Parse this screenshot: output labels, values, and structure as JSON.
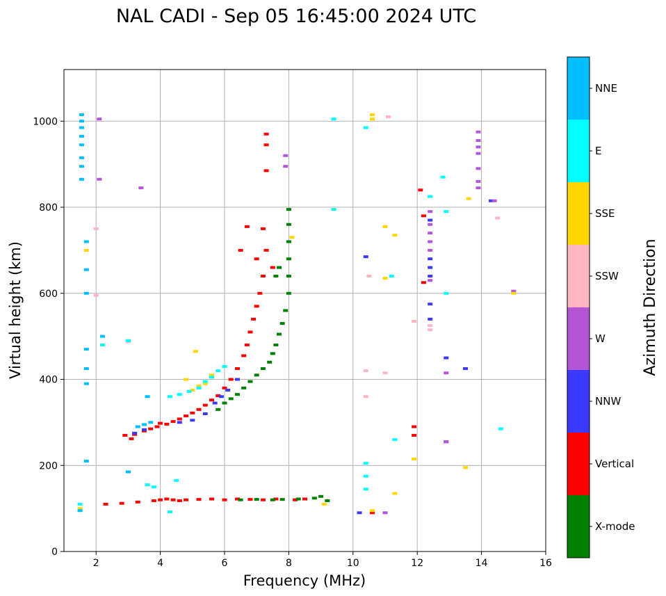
{
  "chart_data": {
    "type": "scatter",
    "title": "NAL CADI - Sep 05 16:45:00 2024 UTC",
    "xlabel": "Frequency (MHz)",
    "ylabel": "Virtual height (km)",
    "xlim": [
      1,
      16
    ],
    "ylim": [
      0,
      1120
    ],
    "xticks": [
      2,
      4,
      6,
      8,
      10,
      12,
      14,
      16
    ],
    "yticks": [
      0,
      200,
      400,
      600,
      800,
      1000
    ],
    "grid": true,
    "colorbar": {
      "label": "Azimuth Direction",
      "categories": [
        {
          "name": "X-mode",
          "color": "#008000"
        },
        {
          "name": "Vertical",
          "color": "#ff0000"
        },
        {
          "name": "NNW",
          "color": "#3a3aff"
        },
        {
          "name": "W",
          "color": "#b455d6"
        },
        {
          "name": "SSW",
          "color": "#ffb6c1"
        },
        {
          "name": "SSE",
          "color": "#ffd700"
        },
        {
          "name": "E",
          "color": "#00ffff"
        },
        {
          "name": "NNE",
          "color": "#00bfff"
        }
      ]
    },
    "series": [
      {
        "name": "Vertical",
        "points": [
          [
            2.9,
            270
          ],
          [
            3.1,
            262
          ],
          [
            3.2,
            272
          ],
          [
            3.5,
            280
          ],
          [
            3.7,
            285
          ],
          [
            3.9,
            290
          ],
          [
            4.0,
            298
          ],
          [
            4.2,
            296
          ],
          [
            4.4,
            302
          ],
          [
            4.6,
            308
          ],
          [
            4.8,
            315
          ],
          [
            5.0,
            322
          ],
          [
            5.2,
            330
          ],
          [
            5.4,
            340
          ],
          [
            5.6,
            352
          ],
          [
            5.8,
            362
          ],
          [
            6.0,
            380
          ],
          [
            6.2,
            400
          ],
          [
            6.4,
            425
          ],
          [
            6.6,
            455
          ],
          [
            6.7,
            480
          ],
          [
            6.8,
            510
          ],
          [
            6.9,
            540
          ],
          [
            7.0,
            570
          ],
          [
            7.1,
            600
          ],
          [
            7.2,
            640
          ],
          [
            7.3,
            700
          ],
          [
            7.2,
            750
          ],
          [
            6.7,
            755
          ],
          [
            6.5,
            700
          ],
          [
            7.0,
            680
          ],
          [
            7.5,
            660
          ],
          [
            4.0,
            120
          ],
          [
            4.2,
            122
          ],
          [
            4.4,
            120
          ],
          [
            4.6,
            118
          ],
          [
            4.8,
            120
          ],
          [
            5.2,
            121
          ],
          [
            5.6,
            122
          ],
          [
            6.0,
            120
          ],
          [
            6.4,
            122
          ],
          [
            6.8,
            121
          ],
          [
            7.2,
            120
          ],
          [
            7.6,
            122
          ],
          [
            8.2,
            120
          ],
          [
            8.5,
            122
          ],
          [
            2.3,
            110
          ],
          [
            2.8,
            112
          ],
          [
            3.3,
            115
          ],
          [
            3.8,
            118
          ],
          [
            7.3,
            970
          ],
          [
            7.3,
            945
          ],
          [
            7.3,
            885
          ],
          [
            10.6,
            90
          ],
          [
            12.1,
            840
          ],
          [
            12.2,
            780
          ],
          [
            12.2,
            625
          ],
          [
            11.9,
            290
          ],
          [
            11.9,
            270
          ]
        ]
      },
      {
        "name": "X-mode",
        "points": [
          [
            5.8,
            330
          ],
          [
            6.0,
            345
          ],
          [
            6.2,
            355
          ],
          [
            6.4,
            365
          ],
          [
            6.6,
            380
          ],
          [
            6.8,
            395
          ],
          [
            7.0,
            410
          ],
          [
            7.2,
            425
          ],
          [
            7.4,
            440
          ],
          [
            7.5,
            460
          ],
          [
            7.6,
            480
          ],
          [
            7.7,
            505
          ],
          [
            7.8,
            530
          ],
          [
            7.9,
            560
          ],
          [
            8.0,
            600
          ],
          [
            8.0,
            640
          ],
          [
            8.0,
            680
          ],
          [
            8.0,
            720
          ],
          [
            8.0,
            760
          ],
          [
            8.0,
            795
          ],
          [
            7.6,
            640
          ],
          [
            7.7,
            660
          ],
          [
            6.5,
            120
          ],
          [
            7.0,
            121
          ],
          [
            7.5,
            120
          ],
          [
            7.8,
            121
          ],
          [
            8.3,
            122
          ],
          [
            8.8,
            124
          ],
          [
            9.0,
            128
          ],
          [
            9.2,
            118
          ]
        ]
      },
      {
        "name": "NNW",
        "points": [
          [
            5.0,
            305
          ],
          [
            5.4,
            320
          ],
          [
            5.7,
            345
          ],
          [
            5.9,
            360
          ],
          [
            6.1,
            375
          ],
          [
            6.4,
            400
          ],
          [
            3.2,
            275
          ],
          [
            3.5,
            283
          ],
          [
            4.6,
            300
          ],
          [
            12.4,
            680
          ],
          [
            12.4,
            660
          ],
          [
            12.4,
            640
          ],
          [
            12.4,
            770
          ],
          [
            12.4,
            575
          ],
          [
            12.4,
            540
          ],
          [
            13.5,
            425
          ],
          [
            12.9,
            450
          ],
          [
            12.9,
            255
          ],
          [
            10.4,
            685
          ],
          [
            10.2,
            90
          ],
          [
            14.3,
            815
          ]
        ]
      },
      {
        "name": "W",
        "points": [
          [
            12.4,
            790
          ],
          [
            12.4,
            760
          ],
          [
            12.4,
            740
          ],
          [
            12.4,
            720
          ],
          [
            12.4,
            700
          ],
          [
            12.4,
            630
          ],
          [
            13.9,
            975
          ],
          [
            13.9,
            955
          ],
          [
            13.9,
            940
          ],
          [
            13.9,
            925
          ],
          [
            13.9,
            890
          ],
          [
            13.9,
            860
          ],
          [
            13.9,
            845
          ],
          [
            14.4,
            815
          ],
          [
            15.0,
            605
          ],
          [
            12.9,
            415
          ],
          [
            12.9,
            255
          ],
          [
            7.9,
            920
          ],
          [
            7.9,
            895
          ],
          [
            3.4,
            845
          ],
          [
            2.1,
            865
          ],
          [
            2.1,
            1005
          ],
          [
            11.0,
            90
          ]
        ]
      },
      {
        "name": "SSW",
        "points": [
          [
            11.1,
            1010
          ],
          [
            12.4,
            525
          ],
          [
            12.4,
            515
          ],
          [
            11.9,
            535
          ],
          [
            14.5,
            775
          ],
          [
            10.4,
            420
          ],
          [
            10.4,
            360
          ],
          [
            11.0,
            415
          ],
          [
            10.5,
            640
          ],
          [
            3.0,
            488
          ],
          [
            2.0,
            750
          ],
          [
            2.0,
            595
          ]
        ]
      },
      {
        "name": "SSE",
        "points": [
          [
            5.0,
            375
          ],
          [
            5.2,
            385
          ],
          [
            5.4,
            390
          ],
          [
            5.6,
            410
          ],
          [
            5.1,
            465
          ],
          [
            4.8,
            400
          ],
          [
            8.1,
            730
          ],
          [
            10.6,
            1015
          ],
          [
            10.6,
            1005
          ],
          [
            11.0,
            755
          ],
          [
            11.0,
            635
          ],
          [
            11.3,
            735
          ],
          [
            13.6,
            820
          ],
          [
            13.5,
            195
          ],
          [
            15.0,
            600
          ],
          [
            11.9,
            215
          ],
          [
            11.3,
            135
          ],
          [
            10.6,
            95
          ],
          [
            9.1,
            110
          ],
          [
            1.7,
            700
          ],
          [
            1.5,
            100
          ]
        ]
      },
      {
        "name": "E",
        "points": [
          [
            4.3,
            360
          ],
          [
            4.6,
            365
          ],
          [
            4.9,
            372
          ],
          [
            5.2,
            380
          ],
          [
            5.4,
            395
          ],
          [
            5.6,
            405
          ],
          [
            5.8,
            420
          ],
          [
            6.0,
            430
          ],
          [
            3.6,
            155
          ],
          [
            3.8,
            150
          ],
          [
            4.3,
            92
          ],
          [
            4.5,
            165
          ],
          [
            9.4,
            1005
          ],
          [
            9.4,
            795
          ],
          [
            10.4,
            985
          ],
          [
            10.4,
            205
          ],
          [
            10.4,
            175
          ],
          [
            10.4,
            145
          ],
          [
            11.2,
            640
          ],
          [
            11.3,
            260
          ],
          [
            12.4,
            825
          ],
          [
            12.8,
            870
          ],
          [
            12.9,
            790
          ],
          [
            12.9,
            600
          ],
          [
            14.6,
            285
          ],
          [
            2.2,
            480
          ],
          [
            1.5,
            110
          ],
          [
            3.0,
            490
          ]
        ]
      },
      {
        "name": "NNE",
        "points": [
          [
            1.55,
            1015
          ],
          [
            1.55,
            1000
          ],
          [
            1.55,
            985
          ],
          [
            1.55,
            965
          ],
          [
            1.55,
            945
          ],
          [
            1.55,
            915
          ],
          [
            1.55,
            895
          ],
          [
            1.55,
            865
          ],
          [
            1.7,
            720
          ],
          [
            1.7,
            655
          ],
          [
            1.7,
            600
          ],
          [
            1.7,
            470
          ],
          [
            1.7,
            425
          ],
          [
            1.7,
            390
          ],
          [
            1.7,
            210
          ],
          [
            3.6,
            360
          ],
          [
            3.3,
            290
          ],
          [
            3.5,
            295
          ],
          [
            3.7,
            300
          ],
          [
            3.0,
            185
          ],
          [
            2.2,
            500
          ],
          [
            1.5,
            95
          ]
        ]
      }
    ]
  }
}
